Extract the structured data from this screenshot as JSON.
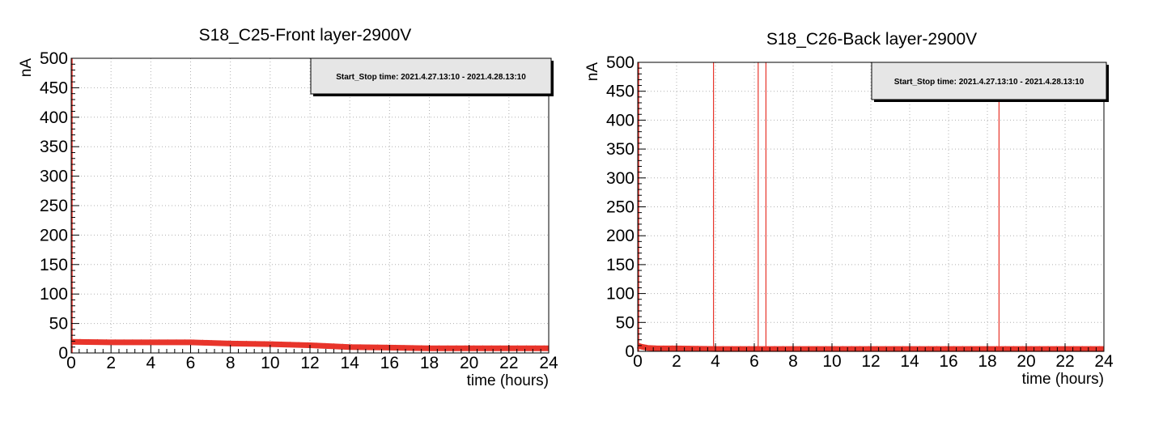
{
  "chart_data": [
    {
      "type": "line",
      "title": "S18_C25-Front layer-2900V",
      "xlabel": "time (hours)",
      "ylabel": "nA",
      "xlim": [
        0,
        24
      ],
      "ylim": [
        0,
        500
      ],
      "xticks": [
        "0",
        "2",
        "4",
        "6",
        "8",
        "10",
        "12",
        "14",
        "16",
        "18",
        "20",
        "22",
        "24"
      ],
      "yticks": [
        "0",
        "50",
        "100",
        "150",
        "200",
        "250",
        "300",
        "350",
        "400",
        "450",
        "500"
      ],
      "grid": true,
      "legend": {
        "position": "top-right",
        "text": "Start_Stop time: 2021.4.27.13:10 - 2021.4.28.13:10"
      },
      "series_color": "#e8352b",
      "series": [
        {
          "x": [
            0,
            2,
            4,
            6,
            7,
            8,
            10,
            12,
            14,
            16,
            18,
            20,
            22,
            24
          ],
          "y": [
            19,
            18,
            18,
            18,
            17,
            16,
            15,
            13,
            10,
            9,
            8,
            8,
            8,
            8
          ]
        }
      ],
      "spikes": []
    },
    {
      "type": "line",
      "title": "S18_C26-Back layer-2900V",
      "xlabel": "time (hours)",
      "ylabel": "nA",
      "xlim": [
        0,
        24
      ],
      "ylim": [
        0,
        500
      ],
      "xticks": [
        "0",
        "2",
        "4",
        "6",
        "8",
        "10",
        "12",
        "14",
        "16",
        "18",
        "20",
        "22",
        "24"
      ],
      "yticks": [
        "0",
        "50",
        "100",
        "150",
        "200",
        "250",
        "300",
        "350",
        "400",
        "450",
        "500"
      ],
      "grid": true,
      "legend": {
        "position": "top-right",
        "text": "Start_Stop time: 2021.4.27.13:10 - 2021.4.28.13:10"
      },
      "series_color": "#e8352b",
      "series": [
        {
          "x": [
            0,
            0.2,
            0.5,
            1,
            2,
            4,
            6,
            8,
            10,
            12,
            14,
            16,
            18,
            20,
            22,
            24
          ],
          "y": [
            10,
            8,
            6,
            5,
            5,
            4,
            4,
            4,
            4,
            4,
            4,
            4,
            4,
            4,
            4,
            4
          ]
        }
      ],
      "spikes": [
        3.9,
        6.2,
        6.6,
        18.6
      ]
    }
  ]
}
